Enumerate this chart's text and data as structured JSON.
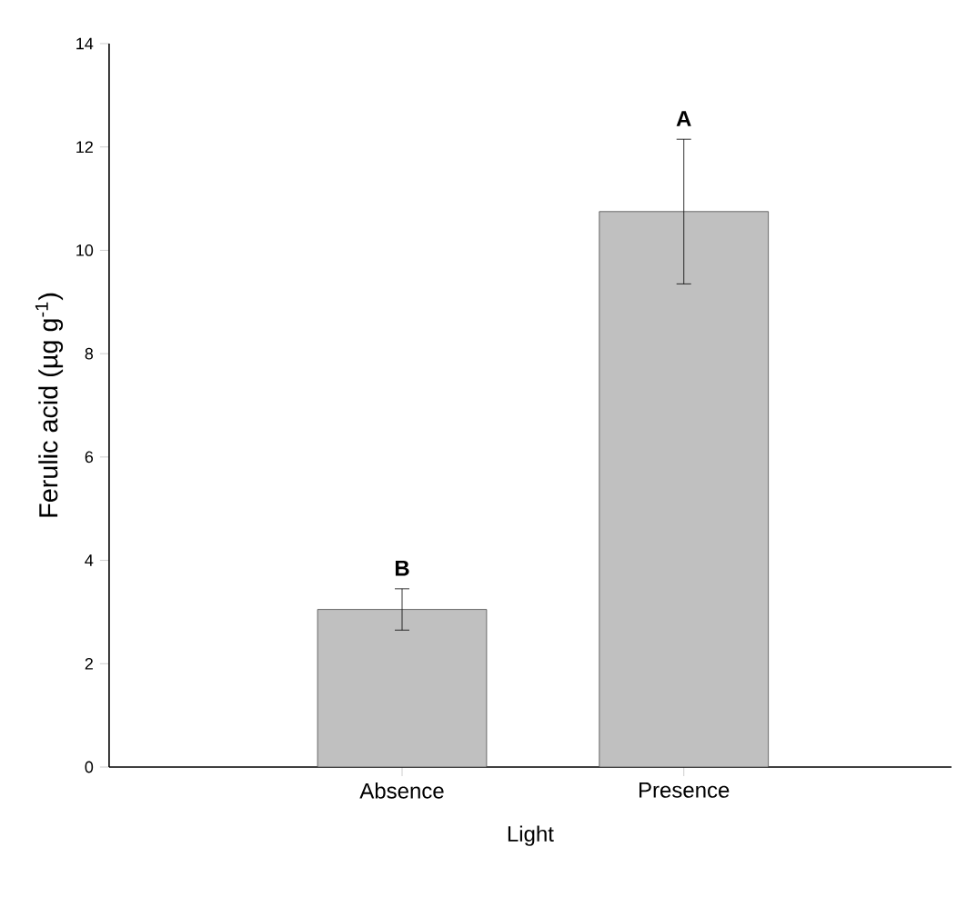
{
  "chart_data": {
    "type": "bar",
    "xlabel": "Light",
    "ylabel": "Ferulic acid (µg g$^{-1}$)",
    "categories": [
      "Absence",
      "Presence"
    ],
    "values": [
      3.05,
      10.75
    ],
    "errors": [
      0.4,
      1.4
    ],
    "color": "#c0c0c0",
    "ylim": [
      0,
      14
    ],
    "yticks": [
      0,
      2,
      4,
      6,
      8,
      10,
      12,
      14
    ],
    "annotations": [
      "B",
      "A"
    ]
  }
}
